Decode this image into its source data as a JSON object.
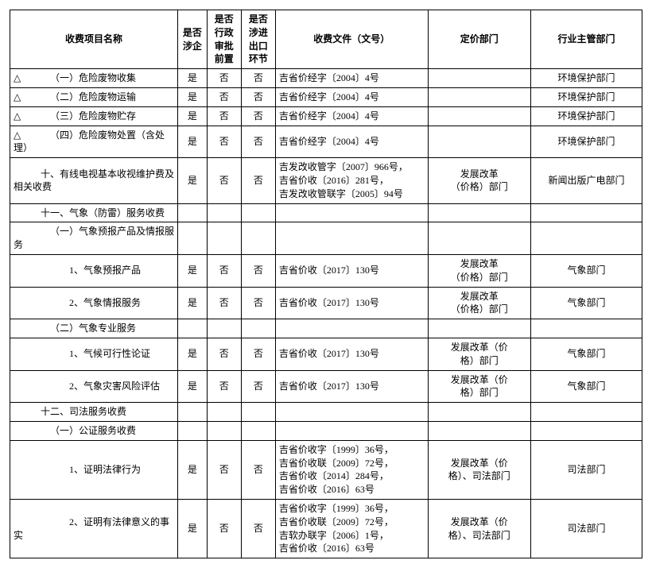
{
  "table": {
    "columns": [
      {
        "label": "收费项目名称"
      },
      {
        "label": "是否\n涉企"
      },
      {
        "label": "是否行政\n审批前置"
      },
      {
        "label": "是否涉进\n出口环节"
      },
      {
        "label": "收费文件（文号）"
      },
      {
        "label": "定价部门"
      },
      {
        "label": "行业主管部门"
      }
    ],
    "rows": [
      {
        "mark": "△",
        "indent": "b",
        "name": "（一）危险废物收集",
        "c": [
          "是",
          "否",
          "否"
        ],
        "doc": "吉省价经字〔2004〕4号",
        "dept": "",
        "ind": "环境保护部门"
      },
      {
        "mark": "△",
        "indent": "b",
        "name": "（二）危险废物运输",
        "c": [
          "是",
          "否",
          "否"
        ],
        "doc": "吉省价经字〔2004〕4号",
        "dept": "",
        "ind": "环境保护部门"
      },
      {
        "mark": "△",
        "indent": "b",
        "name": "（三）危险废物贮存",
        "c": [
          "是",
          "否",
          "否"
        ],
        "doc": "吉省价经字〔2004〕4号",
        "dept": "",
        "ind": "环境保护部门"
      },
      {
        "mark": "△",
        "indent": "b",
        "name": "（四）危险废物处置（含处理）",
        "c": [
          "是",
          "否",
          "否"
        ],
        "doc": "吉省价经字〔2004〕4号",
        "dept": "",
        "ind": "环境保护部门"
      },
      {
        "mark": "",
        "indent": "c",
        "name": "十、有线电视基本收视维护费及相关收费",
        "c": [
          "是",
          "否",
          "否"
        ],
        "doc": "吉发改收管字〔2007〕966号，\n吉省价收〔2016〕281号，\n吉发改收管联字〔2005〕94号",
        "dept": "发展改革\n（价格）部门",
        "ind": "新闻出版广电部门"
      },
      {
        "mark": "",
        "indent": "c",
        "name": "十一、气象（防雷）服务收费",
        "c": [
          "",
          "",
          ""
        ],
        "doc": "",
        "dept": "",
        "ind": ""
      },
      {
        "mark": "",
        "indent": "b",
        "name": "（一）气象预报产品及情报服务",
        "c": [
          "",
          "",
          ""
        ],
        "doc": "",
        "dept": "",
        "ind": ""
      },
      {
        "mark": "",
        "indent": "d",
        "name": "1、气象预报产品",
        "c": [
          "是",
          "否",
          "否"
        ],
        "doc": "吉省价收〔2017〕130号",
        "dept": "发展改革\n（价格）部门",
        "ind": "气象部门"
      },
      {
        "mark": "",
        "indent": "d",
        "name": "2、气象情报服务",
        "c": [
          "是",
          "否",
          "否"
        ],
        "doc": "吉省价收〔2017〕130号",
        "dept": "发展改革\n（价格）部门",
        "ind": "气象部门"
      },
      {
        "mark": "",
        "indent": "b",
        "name": "（二）气象专业服务",
        "c": [
          "",
          "",
          ""
        ],
        "doc": "",
        "dept": "",
        "ind": ""
      },
      {
        "mark": "",
        "indent": "d",
        "name": "1、气候可行性论证",
        "c": [
          "是",
          "否",
          "否"
        ],
        "doc": "吉省价收〔2017〕130号",
        "dept": "发展改革（价\n格）部门",
        "ind": "气象部门"
      },
      {
        "mark": "",
        "indent": "d",
        "name": "2、气象灾害风险评估",
        "c": [
          "是",
          "否",
          "否"
        ],
        "doc": "吉省价收〔2017〕130号",
        "dept": "发展改革（价\n格）部门",
        "ind": "气象部门"
      },
      {
        "mark": "",
        "indent": "c",
        "name": "十二、司法服务收费",
        "c": [
          "",
          "",
          ""
        ],
        "doc": "",
        "dept": "",
        "ind": ""
      },
      {
        "mark": "",
        "indent": "b",
        "name": "（一）公证服务收费",
        "c": [
          "",
          "",
          ""
        ],
        "doc": "",
        "dept": "",
        "ind": ""
      },
      {
        "mark": "",
        "indent": "d",
        "name": "1、证明法律行为",
        "c": [
          "是",
          "否",
          "否"
        ],
        "doc": "吉省价收字〔1999〕36号，\n吉省价收联〔2009〕72号，\n吉省价收〔2014〕284号，\n吉省价收〔2016〕63号",
        "dept": "发展改革（价\n格）、司法部门",
        "ind": "司法部门"
      },
      {
        "mark": "",
        "indent": "d",
        "name": "2、证明有法律意义的事实",
        "c": [
          "是",
          "否",
          "否"
        ],
        "doc": "吉省价收字〔1999〕36号，\n吉省价收联〔2009〕72号，\n吉软办联字〔2006〕1号，\n吉省价收〔2016〕63号",
        "dept": "发展改革（价\n格）、司法部门",
        "ind": "司法部门"
      }
    ]
  }
}
